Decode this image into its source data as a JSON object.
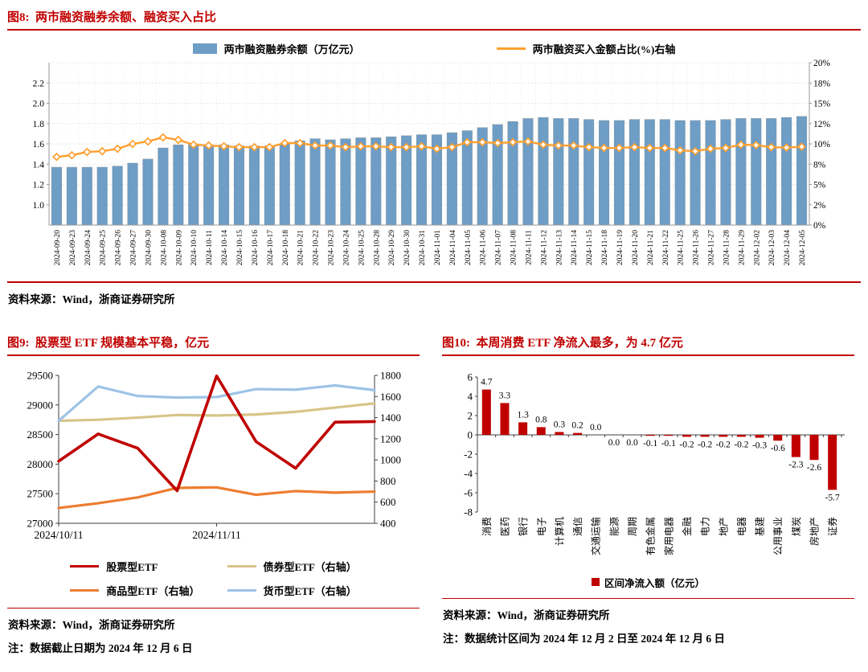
{
  "figures": {
    "fig8": {
      "heading": "图8:  两市融资融券余额、融资买入占比",
      "source": "资料来源：Wind，浙商证券研究所"
    },
    "fig9": {
      "heading": "图9:  股票型 ETF 规模基本平稳，亿元",
      "source": "资料来源：Wind，浙商证券研究所",
      "note": "注：数据截止日期为 2024 年 12 月 6 日"
    },
    "fig10": {
      "heading": "图10:  本周消费 ETF 净流入最多，为 4.7 亿元",
      "source": "资料来源：Wind，浙商证券研究所",
      "note": "注：数据统计区间为 2024 年 12 月 2 日至 2024 年 12 月 6 日"
    }
  },
  "chart_data": [
    {
      "id": "fig8",
      "type": "bar+line",
      "title": "两市融资融券余额、融资买入占比",
      "categories": [
        "2024-09-20",
        "2024-09-23",
        "2024-09-24",
        "2024-09-25",
        "2024-09-26",
        "2024-09-27",
        "2024-09-30",
        "2024-10-08",
        "2024-10-09",
        "2024-10-10",
        "2024-10-11",
        "2024-10-14",
        "2024-10-15",
        "2024-10-16",
        "2024-10-17",
        "2024-10-18",
        "2024-10-21",
        "2024-10-22",
        "2024-10-23",
        "2024-10-24",
        "2024-10-25",
        "2024-10-28",
        "2024-10-29",
        "2024-10-30",
        "2024-10-31",
        "2024-11-01",
        "2024-11-04",
        "2024-11-05",
        "2024-11-06",
        "2024-11-07",
        "2024-11-08",
        "2024-11-11",
        "2024-11-12",
        "2024-11-13",
        "2024-11-14",
        "2024-11-15",
        "2024-11-18",
        "2024-11-19",
        "2024-11-20",
        "2024-11-21",
        "2024-11-22",
        "2024-11-25",
        "2024-11-26",
        "2024-11-27",
        "2024-11-28",
        "2024-11-29",
        "2024-12-02",
        "2024-12-03",
        "2024-12-04",
        "2024-12-05"
      ],
      "series": [
        {
          "name": "两市融资融券余额（万亿元）",
          "type": "bar",
          "axis": "left",
          "color": "#6e9dc6",
          "values": [
            1.37,
            1.37,
            1.37,
            1.37,
            1.38,
            1.41,
            1.45,
            1.56,
            1.59,
            1.6,
            1.59,
            1.59,
            1.58,
            1.58,
            1.58,
            1.6,
            1.63,
            1.65,
            1.64,
            1.65,
            1.66,
            1.66,
            1.67,
            1.68,
            1.69,
            1.69,
            1.71,
            1.73,
            1.76,
            1.79,
            1.82,
            1.85,
            1.86,
            1.85,
            1.85,
            1.84,
            1.83,
            1.83,
            1.84,
            1.84,
            1.84,
            1.83,
            1.83,
            1.83,
            1.84,
            1.85,
            1.85,
            1.85,
            1.86,
            1.87
          ]
        },
        {
          "name": "两市融资买入金额占比(%)右轴",
          "type": "line",
          "axis": "right",
          "color": "#ff9f2e",
          "values": [
            8.4,
            8.6,
            9.0,
            9.1,
            9.4,
            10.0,
            10.3,
            10.8,
            10.5,
            9.9,
            9.8,
            9.7,
            9.6,
            9.6,
            9.6,
            10.1,
            10.1,
            9.8,
            9.8,
            9.6,
            9.7,
            9.7,
            9.6,
            9.6,
            9.7,
            9.4,
            9.6,
            10.2,
            10.2,
            10.1,
            10.2,
            10.3,
            9.9,
            9.8,
            9.8,
            9.6,
            9.5,
            9.5,
            9.6,
            9.5,
            9.5,
            9.2,
            9.1,
            9.4,
            9.5,
            9.9,
            9.85,
            9.6,
            9.55,
            9.65
          ]
        }
      ],
      "left_axis": {
        "min": 0.8,
        "max": 2.4,
        "ticks": [
          [
            2.2,
            "2.2"
          ],
          [
            2.0,
            "2.0"
          ],
          [
            1.8,
            "1.8"
          ],
          [
            1.6,
            "1.6"
          ],
          [
            1.4,
            "1.4"
          ],
          [
            1.2,
            "1.2"
          ],
          [
            1.0,
            "1.0"
          ]
        ]
      },
      "right_axis": {
        "min": 0,
        "max": 20,
        "ticks": [
          [
            20,
            "20%"
          ],
          [
            17.5,
            "18%"
          ],
          [
            15,
            "15%"
          ],
          [
            12.5,
            "12%"
          ],
          [
            10,
            "10%"
          ],
          [
            7.5,
            "8%"
          ],
          [
            5,
            "5%"
          ],
          [
            2.5,
            "2%"
          ],
          [
            0,
            "0%"
          ]
        ]
      }
    },
    {
      "id": "fig9",
      "type": "line",
      "title": "股票型 ETF 规模基本平稳，亿元",
      "x_tick_labels": [
        {
          "index": 0,
          "label": "2024/10/11"
        },
        {
          "index": 4,
          "label": "2024/11/11"
        }
      ],
      "series": [
        {
          "name": "股票型ETF",
          "axis": "left",
          "color": "#c00000",
          "width": 3.6,
          "values": [
            28050,
            28510,
            28270,
            27550,
            29490,
            28380,
            27930,
            28710,
            28720
          ]
        },
        {
          "name": "债券型ETF（右轴）",
          "axis": "right",
          "color": "#d7c488",
          "width": 3.2,
          "values": [
            1370,
            1380,
            1400,
            1425,
            1420,
            1430,
            1455,
            1495,
            1535
          ]
        },
        {
          "name": "商品型ETF（右轴）",
          "axis": "right",
          "color": "#ed7d31",
          "width": 3.2,
          "values": [
            545,
            590,
            645,
            735,
            740,
            670,
            705,
            690,
            700
          ]
        },
        {
          "name": "货币型ETF（右轴）",
          "axis": "right",
          "color": "#9dc3e6",
          "width": 3.2,
          "values": [
            1370,
            1695,
            1605,
            1590,
            1595,
            1670,
            1665,
            1705,
            1660
          ]
        }
      ],
      "left_axis": {
        "min": 27000,
        "max": 29500,
        "ticks": [
          [
            29500,
            "29500"
          ],
          [
            29000,
            "29000"
          ],
          [
            28500,
            "28500"
          ],
          [
            28000,
            "28000"
          ],
          [
            27500,
            "27500"
          ],
          [
            27000,
            "27000"
          ]
        ]
      },
      "right_axis": {
        "min": 400,
        "max": 1800,
        "ticks": [
          [
            1800,
            "1800"
          ],
          [
            1600,
            "1600"
          ],
          [
            1400,
            "1400"
          ],
          [
            1200,
            "1200"
          ],
          [
            1000,
            "1000"
          ],
          [
            800,
            "800"
          ],
          [
            600,
            "600"
          ],
          [
            400,
            "400"
          ]
        ]
      }
    },
    {
      "id": "fig10",
      "type": "bar",
      "title": "本周消费 ETF 净流入最多，为 4.7 亿元",
      "legend": "区间净流入额（亿元）",
      "color": "#c00000",
      "categories": [
        "消费",
        "医药",
        "银行",
        "电子",
        "计算机",
        "通信",
        "交通运输",
        "能源",
        "周期",
        "有色金属",
        "家用电器",
        "金融",
        "电力",
        "地产",
        "电器",
        "基建",
        "公用事业",
        "煤炭",
        "房地产",
        "证券"
      ],
      "values": [
        4.7,
        3.3,
        1.3,
        0.8,
        0.3,
        0.2,
        0.0,
        0.0,
        0.0,
        -0.1,
        -0.1,
        -0.2,
        -0.2,
        -0.2,
        -0.2,
        -0.3,
        -0.6,
        -2.3,
        -2.6,
        -5.7
      ],
      "labels": [
        "4.7",
        "3.3",
        "1.3",
        "0.8",
        "0.3",
        "0.2",
        "0.0",
        "0.0",
        "0.0",
        "-0.1",
        "-0.1",
        "-0.2",
        "-0.2",
        "-0.2",
        "-0.2",
        "-0.3",
        "-0.6",
        "-2.3",
        "-2.6",
        "-5.7"
      ],
      "ylim": [
        -8,
        6
      ],
      "ticks": [
        [
          6,
          "6"
        ],
        [
          4,
          "4"
        ],
        [
          2,
          "2"
        ],
        [
          0,
          "0"
        ],
        [
          -2,
          "-2"
        ],
        [
          -4,
          "-4"
        ],
        [
          -6,
          "-6"
        ],
        [
          -8,
          "-8"
        ]
      ]
    }
  ]
}
